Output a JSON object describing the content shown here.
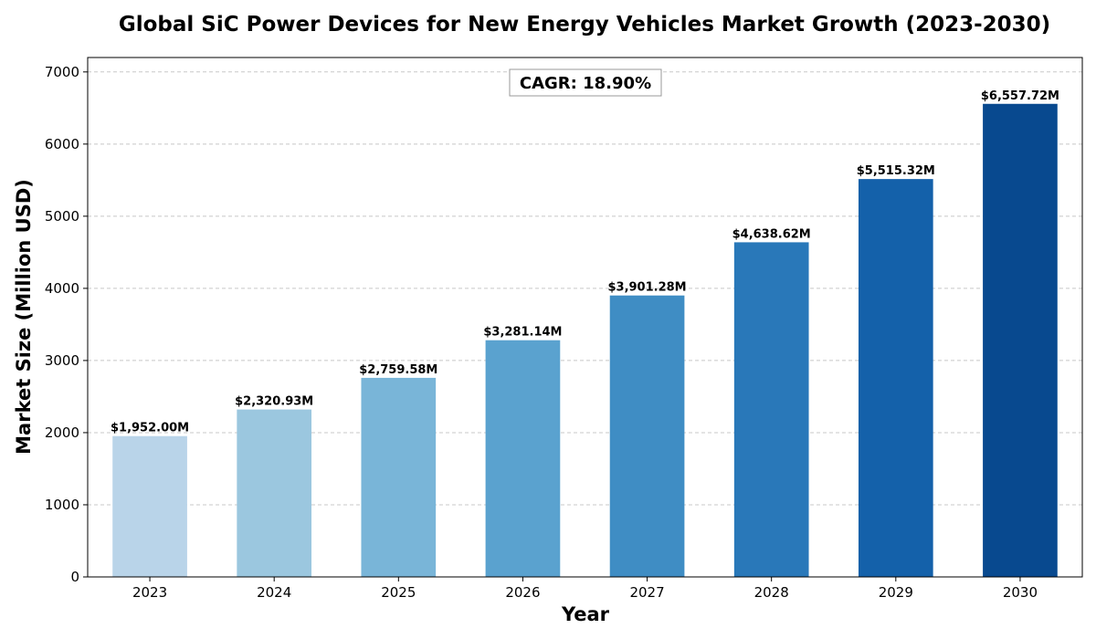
{
  "chart_data": {
    "type": "bar",
    "title": "Global SiC Power Devices for New Energy Vehicles Market Growth (2023-2030)",
    "xlabel": "Year",
    "ylabel": "Market Size (Million USD)",
    "categories": [
      "2023",
      "2024",
      "2025",
      "2026",
      "2027",
      "2028",
      "2029",
      "2030"
    ],
    "values": [
      1952.0,
      2320.93,
      2759.58,
      3281.14,
      3901.28,
      4638.62,
      5515.32,
      6557.72
    ],
    "data_labels": [
      "$1,952.00M",
      "$2,320.93M",
      "$2,759.58M",
      "$3,281.14M",
      "$3,901.28M",
      "$4,638.62M",
      "$5,515.32M",
      "$6,557.72M"
    ],
    "colors": [
      "#b9d4e9",
      "#9bc7df",
      "#79b5d8",
      "#5aa2cf",
      "#3f8dc4",
      "#2978b9",
      "#1461aa",
      "#08498f"
    ],
    "ylim": [
      0,
      7200
    ],
    "yticks": [
      0,
      1000,
      2000,
      3000,
      4000,
      5000,
      6000,
      7000
    ],
    "grid": "y-dashed",
    "annotation": "CAGR: 18.90%"
  }
}
